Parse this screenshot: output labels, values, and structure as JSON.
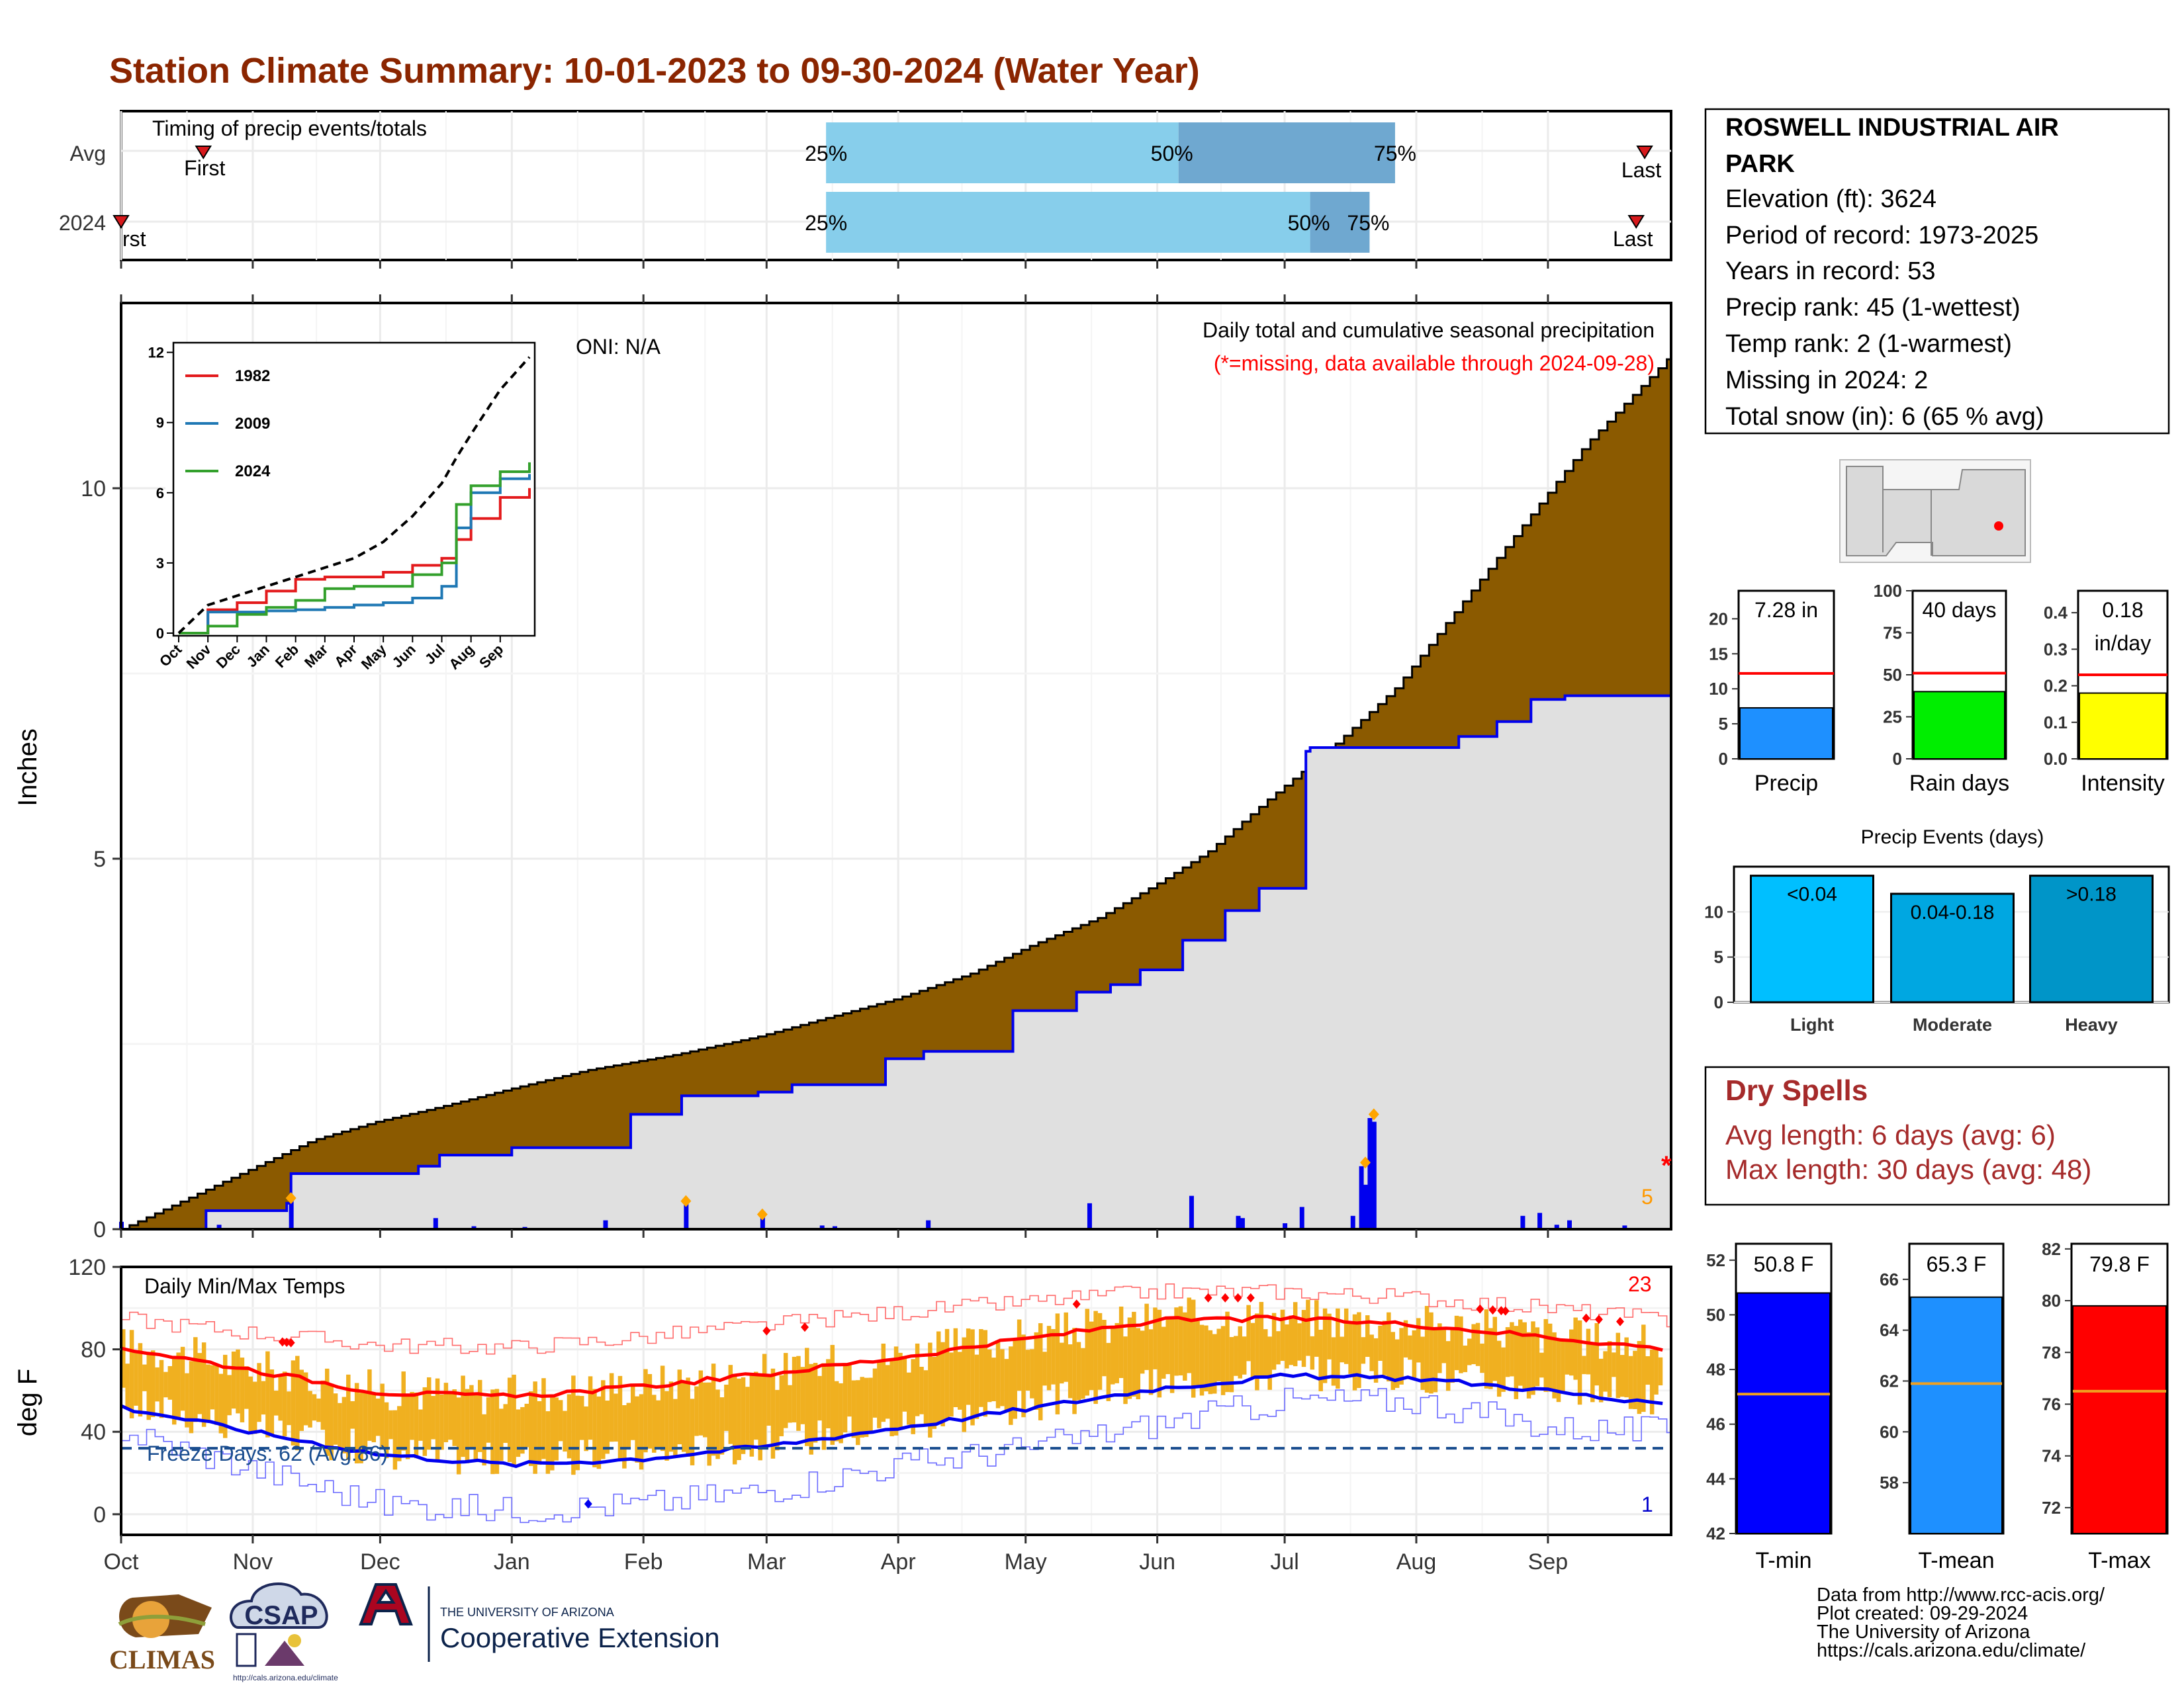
{
  "title": "Station Climate Summary: 10-01-2023 to 09-30-2024 (Water Year)",
  "timing": {
    "label": "Timing of precip events/totals",
    "rows": [
      {
        "name": "Avg",
        "first_day": 15,
        "last_day": 358,
        "q25": "25%",
        "q50": "50%",
        "q75": "75%",
        "d25": 166,
        "d50": 249,
        "d75": 300
      },
      {
        "name": "2024",
        "first_day": 0,
        "last_day": 356,
        "q25": "25%",
        "q50": "50%",
        "q75": "75%",
        "d25": 166,
        "d50": 280,
        "d75": 294
      }
    ],
    "first_label": "First",
    "last_label": "Last",
    "first_cut_label": "rst"
  },
  "precip_panel": {
    "ylabel": "Inches",
    "note1": "Daily total and cumulative seasonal precipitation",
    "note2": "(*=missing, data available through 2024-09-28)",
    "oni": "ONI: N/A",
    "missing_marker": "*",
    "missing_count": "5",
    "yticks": [
      "0",
      "5",
      "10"
    ],
    "ylim": [
      0,
      12.5
    ],
    "chart_data": {
      "type": "area",
      "series": [
        {
          "name": "Average cumulative",
          "x": [
            0,
            15,
            30,
            45,
            60,
            75,
            92,
            110,
            130,
            150,
            166,
            182,
            200,
            215,
            230,
            245,
            256,
            270,
            285,
            300,
            315,
            330,
            345,
            365
          ],
          "y": [
            0,
            0.4,
            0.8,
            1.2,
            1.45,
            1.65,
            1.9,
            2.15,
            2.35,
            2.6,
            2.85,
            3.1,
            3.45,
            3.85,
            4.2,
            4.7,
            5.1,
            5.8,
            6.5,
            7.3,
            8.4,
            9.5,
            10.6,
            11.8
          ]
        },
        {
          "name": "2024 cumulative",
          "x": [
            0,
            20,
            39,
            40,
            70,
            75,
            92,
            120,
            132,
            150,
            158,
            180,
            189,
            210,
            225,
            233,
            240,
            250,
            260,
            268,
            279,
            280,
            300,
            315,
            324,
            332,
            340,
            365
          ],
          "y": [
            0,
            0.25,
            0.35,
            0.75,
            0.85,
            1.0,
            1.1,
            1.55,
            1.8,
            1.85,
            1.95,
            2.3,
            2.4,
            2.95,
            3.2,
            3.3,
            3.5,
            3.9,
            4.3,
            4.6,
            6.45,
            6.5,
            6.5,
            6.65,
            6.85,
            7.15,
            7.2,
            7.28
          ]
        }
      ],
      "daily_bars": [
        {
          "x": 0,
          "y": 0.1
        },
        {
          "x": 23,
          "y": 0.06
        },
        {
          "x": 40,
          "y": 0.42
        },
        {
          "x": 74,
          "y": 0.15
        },
        {
          "x": 83,
          "y": 0.04
        },
        {
          "x": 95,
          "y": 0.03
        },
        {
          "x": 114,
          "y": 0.12
        },
        {
          "x": 133,
          "y": 0.38
        },
        {
          "x": 151,
          "y": 0.2
        },
        {
          "x": 165,
          "y": 0.05
        },
        {
          "x": 168,
          "y": 0.04
        },
        {
          "x": 190,
          "y": 0.12
        },
        {
          "x": 228,
          "y": 0.35
        },
        {
          "x": 252,
          "y": 0.45
        },
        {
          "x": 263,
          "y": 0.18
        },
        {
          "x": 264,
          "y": 0.15
        },
        {
          "x": 274,
          "y": 0.08
        },
        {
          "x": 278,
          "y": 0.3
        },
        {
          "x": 290,
          "y": 0.18
        },
        {
          "x": 292,
          "y": 0.85
        },
        {
          "x": 293,
          "y": 0.6
        },
        {
          "x": 294,
          "y": 1.5
        },
        {
          "x": 295,
          "y": 1.45
        },
        {
          "x": 330,
          "y": 0.18
        },
        {
          "x": 334,
          "y": 0.22
        },
        {
          "x": 338,
          "y": 0.06
        },
        {
          "x": 341,
          "y": 0.12
        },
        {
          "x": 354,
          "y": 0.05
        }
      ],
      "record_markers": [
        {
          "x": 40,
          "y": 0.42
        },
        {
          "x": 133,
          "y": 0.38
        },
        {
          "x": 151,
          "y": 0.2
        },
        {
          "x": 293,
          "y": 0.9
        },
        {
          "x": 295,
          "y": 1.55
        }
      ]
    }
  },
  "inset": {
    "yticks": [
      "0",
      "3",
      "6",
      "9",
      "12"
    ],
    "months": [
      "Oct",
      "Nov",
      "Dec",
      "Jan",
      "Feb",
      "Mar",
      "Apr",
      "May",
      "Jun",
      "Jul",
      "Aug",
      "Sep"
    ],
    "legend": [
      "1982",
      "2009",
      "2024"
    ],
    "colors": {
      "1982": "#e31a1c",
      "2009": "#1f78b4",
      "2024": "#33a02c",
      "avg": "#000000"
    },
    "chart_data": {
      "type": "line",
      "x_months": [
        0,
        1,
        2,
        3,
        4,
        5,
        6,
        7,
        8,
        9,
        9.5,
        10,
        11,
        12
      ],
      "series": [
        {
          "name": "1982",
          "values": [
            0,
            1.0,
            1.3,
            1.8,
            2.3,
            2.4,
            2.4,
            2.6,
            2.9,
            3.2,
            4.0,
            4.9,
            5.8,
            6.2
          ]
        },
        {
          "name": "2009",
          "values": [
            0,
            0.9,
            0.9,
            0.95,
            1.0,
            1.1,
            1.2,
            1.3,
            1.5,
            2.0,
            4.5,
            6.0,
            6.6,
            6.8
          ]
        },
        {
          "name": "2024",
          "values": [
            0,
            0.3,
            0.8,
            1.1,
            1.4,
            1.9,
            2.0,
            2.0,
            2.5,
            3.0,
            5.5,
            6.3,
            6.9,
            7.3
          ]
        },
        {
          "name": "avg",
          "values": [
            0,
            1.2,
            1.6,
            2.0,
            2.4,
            2.8,
            3.2,
            3.9,
            5.0,
            6.4,
            7.5,
            8.5,
            10.4,
            11.8
          ]
        }
      ]
    }
  },
  "temp_panel": {
    "title": "Daily Min/Max Temps",
    "ylabel": "deg F",
    "yticks": [
      "0",
      "40",
      "80",
      "120"
    ],
    "ylim": [
      -10,
      120
    ],
    "freeze_label": "Freeze Days: 62 (Avg:86)",
    "freeze_line": 32,
    "record_high_count": "23",
    "record_low_count": "1",
    "months": [
      "Oct",
      "Nov",
      "Dec",
      "Jan",
      "Feb",
      "Mar",
      "Apr",
      "May",
      "Jun",
      "Jul",
      "Aug",
      "Sep"
    ],
    "chart_data": {
      "type": "line",
      "x_days": [
        0,
        31,
        61,
        92,
        123,
        152,
        183,
        213,
        244,
        274,
        305,
        336,
        365
      ],
      "series": [
        {
          "name": "Normal max",
          "values": [
            81,
            70,
            59,
            57,
            62,
            68,
            76,
            85,
            94,
            95,
            92,
            86,
            80
          ]
        },
        {
          "name": "Normal min",
          "values": [
            52,
            40,
            29,
            24,
            27,
            33,
            42,
            51,
            61,
            67,
            66,
            60,
            52
          ]
        },
        {
          "name": "Record max",
          "values": [
            95,
            88,
            82,
            81,
            86,
            92,
            98,
            103,
            108,
            108,
            105,
            100,
            94
          ]
        },
        {
          "name": "Record min",
          "values": [
            40,
            22,
            5,
            2,
            5,
            12,
            24,
            32,
            44,
            55,
            55,
            42,
            40
          ]
        }
      ]
    }
  },
  "station": {
    "name_line1": "ROSWELL INDUSTRIAL AIR",
    "name_line2": "PARK",
    "lines": [
      "Elevation (ft): 3624",
      "Period of record: 1973-2025",
      "Years in record: 53",
      "Precip rank: 45 (1-wettest)",
      "Temp rank: 2 (1-warmest)",
      "Missing in 2024: 2",
      "Total snow (in): 6 (65 % avg)"
    ]
  },
  "small_bars": {
    "chart_data": [
      {
        "type": "bar",
        "category": "Precip",
        "value": 7.28,
        "label": "7.28 in",
        "avg": 12.2,
        "ylim": [
          0,
          24
        ],
        "yticks": [
          "0",
          "5",
          "10",
          "15",
          "20"
        ],
        "color": "#1e90ff"
      },
      {
        "type": "bar",
        "category": "Rain days",
        "value": 40,
        "label": "40 days",
        "avg": 51,
        "ylim": [
          0,
          100
        ],
        "yticks": [
          "0",
          "25",
          "50",
          "75",
          "100"
        ],
        "color": "#00ee00"
      },
      {
        "type": "bar",
        "category": "Intensity",
        "value": 0.18,
        "label": "0.18",
        "label2": "in/day",
        "avg": 0.23,
        "ylim": [
          0,
          0.46
        ],
        "yticks": [
          "0.0",
          "0.1",
          "0.2",
          "0.3",
          "0.4"
        ],
        "color": "#ffff00"
      }
    ]
  },
  "events": {
    "title": "Precip Events (days)",
    "yticks": [
      "0",
      "5",
      "10"
    ],
    "chart_data": {
      "type": "bar",
      "categories": [
        "Light",
        "Moderate",
        "Heavy"
      ],
      "values": [
        14,
        12,
        14
      ],
      "bar_labels": [
        "<0.04",
        "0.04-0.18",
        ">0.18"
      ],
      "colors": [
        "#00bfff",
        "#00a7e1",
        "#0095c8"
      ],
      "ylim": [
        0,
        15
      ]
    }
  },
  "dry_spells": {
    "title": "Dry Spells",
    "line1": "Avg length: 6 days (avg: 6)",
    "line2": "Max length: 30 days (avg: 48)"
  },
  "temp_bars": {
    "chart_data": [
      {
        "type": "bar",
        "category": "T-min",
        "value": 50.8,
        "label": "50.8 F",
        "avg": 47.1,
        "ylim": [
          42,
          52.6
        ],
        "yticks": [
          "42",
          "44",
          "46",
          "48",
          "50",
          "52"
        ],
        "color": "#0000ff"
      },
      {
        "type": "bar",
        "category": "T-mean",
        "value": 65.3,
        "label": "65.3 F",
        "avg": 61.9,
        "ylim": [
          56,
          67.4
        ],
        "yticks": [
          "58",
          "60",
          "62",
          "64",
          "66"
        ],
        "color": "#1e90ff"
      },
      {
        "type": "bar",
        "category": "T-max",
        "value": 79.8,
        "label": "79.8 F",
        "avg": 76.5,
        "ylim": [
          71,
          82.2
        ],
        "yticks": [
          "72",
          "74",
          "76",
          "78",
          "80",
          "82"
        ],
        "color": "#ff0000"
      }
    ]
  },
  "credits": [
    "Data from http://www.rcc-acis.org/",
    "Plot created: 09-29-2024",
    "The University of Arizona",
    "https://cals.arizona.edu/climate/"
  ],
  "logos": {
    "climas": "CLIMAS",
    "csap": "CSAP",
    "csap_url": "http://cals.arizona.edu/climate",
    "ua_small": "THE UNIVERSITY OF ARIZONA",
    "ua_big": "Cooperative Extension"
  }
}
